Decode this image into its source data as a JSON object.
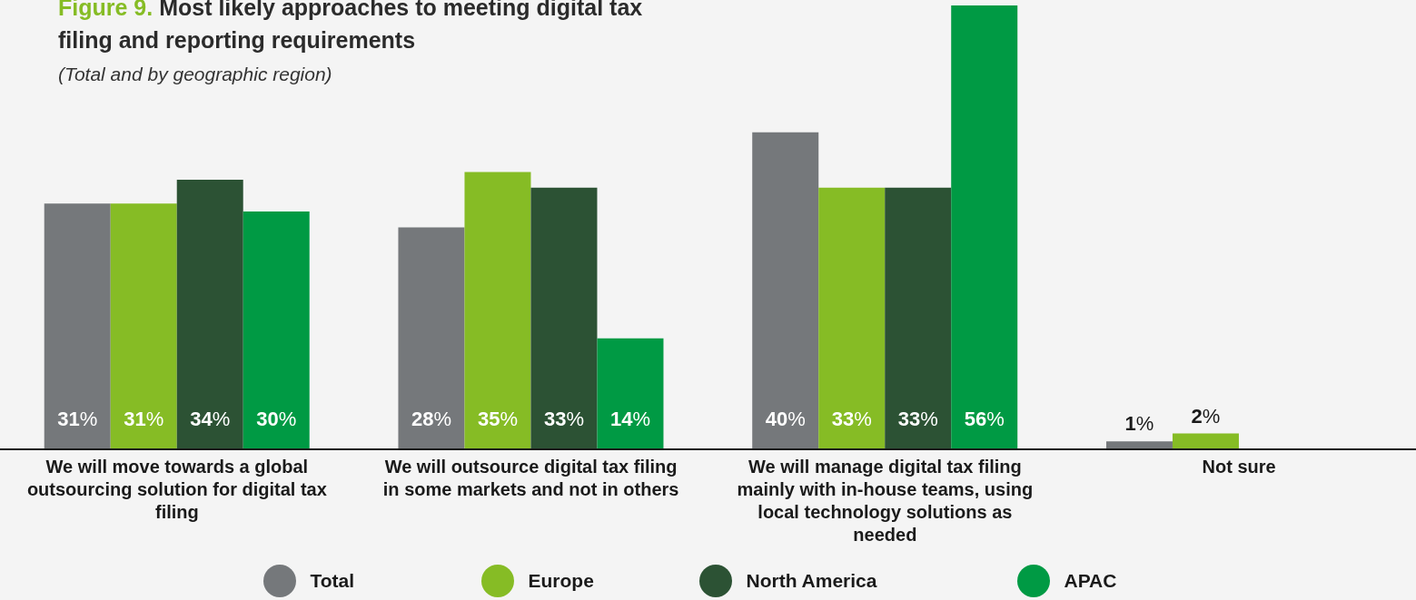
{
  "chart_data": {
    "type": "bar",
    "title": "Figure 9. Most likely approaches to meeting digital tax filing and reporting requirements",
    "subtitle": "(Total and by geographic region)",
    "categories": [
      "We will move towards a global outsourcing solution for digital tax filing",
      "We will outsource digital tax filing in some markets and not in others",
      "We will manage digital tax filing mainly with in-house teams, using local technology solutions as needed",
      "Not sure"
    ],
    "series": [
      {
        "name": "Total",
        "color": "#75787b",
        "values": [
          31,
          28,
          40,
          1
        ],
        "value_labels": [
          "31%",
          "28%",
          "40%",
          "1%"
        ]
      },
      {
        "name": "Europe",
        "color": "#86bc25",
        "values": [
          31,
          35,
          33,
          2
        ],
        "value_labels": [
          "31%",
          "35%",
          "33%",
          "2%"
        ]
      },
      {
        "name": "North America",
        "color": "#2c5234",
        "values": [
          34,
          33,
          33,
          null
        ],
        "value_labels": [
          "34%",
          "33%",
          "33%",
          null
        ]
      },
      {
        "name": "APAC",
        "color": "#009a44",
        "values": [
          30,
          14,
          56,
          null
        ],
        "value_labels": [
          "30%",
          "14%",
          "56%",
          null
        ]
      }
    ],
    "legend": "bottom",
    "grid": false
  }
}
